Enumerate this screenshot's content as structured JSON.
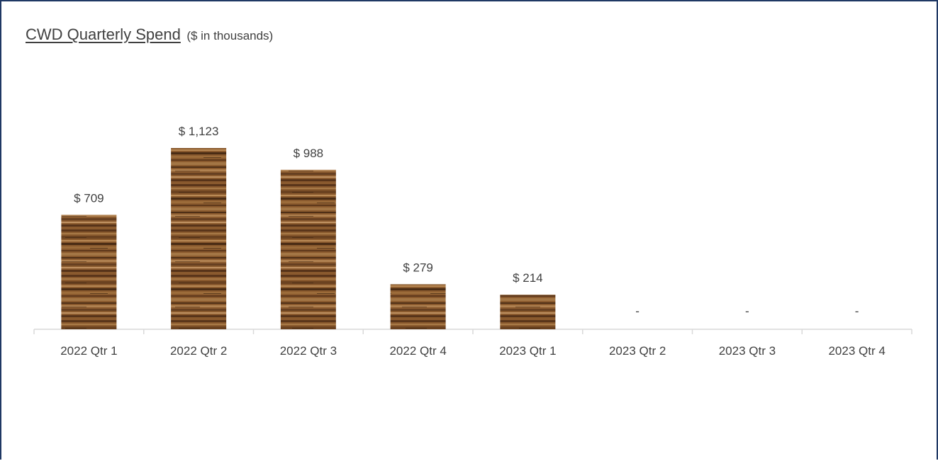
{
  "chart_data": {
    "type": "bar",
    "title": "CWD Quarterly Spend",
    "subtitle": "($ in thousands)",
    "categories": [
      "2022 Qtr 1",
      "2022 Qtr 2",
      "2022 Qtr 3",
      "2022 Qtr 4",
      "2023 Qtr 1",
      "2023 Qtr 2",
      "2023 Qtr 3",
      "2023 Qtr 4"
    ],
    "values": [
      709,
      1123,
      988,
      279,
      214,
      0,
      0,
      0
    ],
    "data_labels": [
      "$ 709",
      "$ 1,123",
      "$ 988",
      "$ 279",
      "$ 214",
      "-",
      "-",
      "-"
    ],
    "xlabel": "",
    "ylabel": "",
    "ylim": [
      0,
      1123
    ],
    "grid": false,
    "legend": "none",
    "bar_fill": "wood-texture"
  },
  "colors": {
    "frame_border": "#1f3864",
    "text": "#404040",
    "axis": "#d9d9d9",
    "wood_base": "#8a5a2e",
    "wood_dark": "#4a2c14",
    "wood_light": "#b98a55"
  }
}
